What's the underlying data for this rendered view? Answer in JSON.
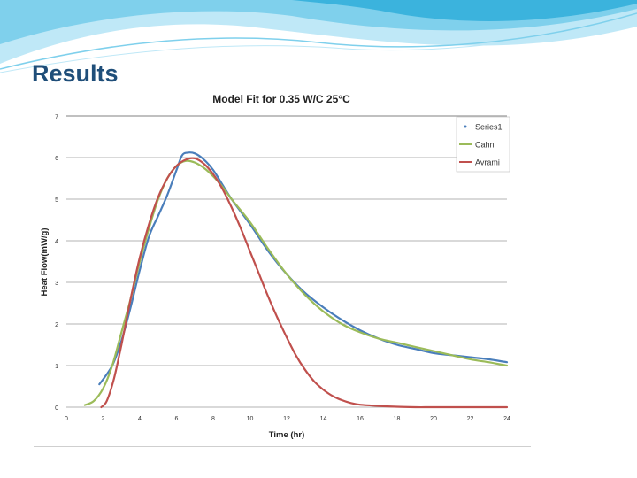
{
  "slide": {
    "title": "Results"
  },
  "colors": {
    "title": "#1f4e79",
    "header_wave_light": "#bfe8f7",
    "header_wave_mid": "#7fd0ec",
    "header_wave_dark": "#3bb3dd",
    "gridline": "#9a9a9a"
  },
  "chart_data": {
    "type": "line",
    "title": "Model Fit for 0.35 W/C  25°C",
    "xlabel": "Time (hr)",
    "ylabel": "Heat Flow(mW/g)",
    "xlim": [
      0,
      24
    ],
    "ylim": [
      0,
      7
    ],
    "xticks": [
      0,
      2,
      4,
      6,
      8,
      10,
      12,
      14,
      16,
      18,
      20,
      22,
      24
    ],
    "yticks": [
      0,
      1,
      2,
      3,
      4,
      5,
      6,
      7
    ],
    "grid": true,
    "legend_position": "top-right",
    "series": [
      {
        "name": "Series1",
        "color": "#4a7ebb",
        "x": [
          1.8,
          2.5,
          3,
          3.5,
          4,
          4.5,
          5,
          5.5,
          6,
          6.3,
          6.6,
          7,
          7.5,
          8,
          8.5,
          9,
          10,
          11,
          12,
          13,
          14,
          15,
          16,
          17,
          18,
          19,
          20,
          21,
          22,
          23,
          24
        ],
        "y": [
          0.55,
          1.0,
          1.6,
          2.4,
          3.3,
          4.1,
          4.6,
          5.1,
          5.7,
          6.05,
          6.12,
          6.1,
          5.95,
          5.7,
          5.35,
          5.0,
          4.4,
          3.75,
          3.2,
          2.75,
          2.4,
          2.1,
          1.85,
          1.65,
          1.5,
          1.4,
          1.3,
          1.25,
          1.2,
          1.15,
          1.08
        ]
      },
      {
        "name": "Cahn",
        "color": "#9bbb59",
        "x": [
          1.0,
          1.5,
          2,
          2.5,
          3,
          3.5,
          4,
          4.5,
          5,
          5.5,
          6,
          6.5,
          7,
          7.5,
          8,
          8.5,
          9,
          10,
          11,
          12,
          13,
          14,
          15,
          16,
          17,
          18,
          19,
          20,
          21,
          22,
          23,
          24
        ],
        "y": [
          0.05,
          0.15,
          0.45,
          1.0,
          1.8,
          2.6,
          3.5,
          4.3,
          5.0,
          5.5,
          5.8,
          5.92,
          5.88,
          5.75,
          5.55,
          5.3,
          5.0,
          4.45,
          3.8,
          3.2,
          2.7,
          2.3,
          2.0,
          1.8,
          1.65,
          1.55,
          1.45,
          1.35,
          1.25,
          1.15,
          1.08,
          1.0
        ]
      },
      {
        "name": "Avrami",
        "color": "#c0504d",
        "x": [
          1.9,
          2.2,
          2.6,
          3,
          3.5,
          4,
          4.5,
          5,
          5.5,
          6,
          6.5,
          7,
          7.5,
          8,
          8.5,
          9,
          9.5,
          10,
          10.5,
          11,
          11.5,
          12,
          12.5,
          13,
          13.5,
          14,
          14.5,
          15,
          15.5,
          16,
          17,
          18,
          19,
          20,
          22,
          24
        ],
        "y": [
          0.0,
          0.15,
          0.7,
          1.5,
          2.6,
          3.6,
          4.4,
          5.05,
          5.5,
          5.8,
          5.95,
          5.98,
          5.85,
          5.6,
          5.25,
          4.8,
          4.3,
          3.75,
          3.2,
          2.65,
          2.15,
          1.68,
          1.25,
          0.9,
          0.62,
          0.42,
          0.27,
          0.17,
          0.1,
          0.06,
          0.03,
          0.01,
          0.0,
          0.0,
          0.0,
          0.0
        ]
      }
    ]
  }
}
